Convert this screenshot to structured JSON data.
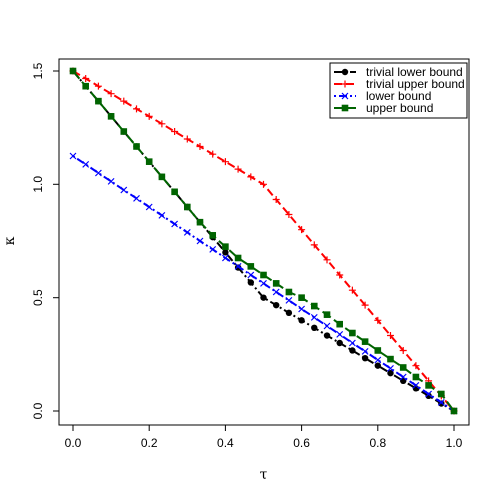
{
  "chart_data": {
    "type": "line",
    "xlabel": "τ",
    "ylabel": "κ",
    "xlim": [
      0,
      1
    ],
    "ylim": [
      0,
      1.5
    ],
    "x_ticks": [
      "0.0",
      "0.2",
      "0.4",
      "0.6",
      "0.8",
      "1.0"
    ],
    "y_ticks": [
      "0.0",
      "0.5",
      "1.0",
      "1.5"
    ],
    "grid": false,
    "legend_position": "top-right",
    "x": [
      0,
      0.0333,
      0.0667,
      0.1,
      0.1333,
      0.1667,
      0.2,
      0.2333,
      0.2667,
      0.3,
      0.3333,
      0.3667,
      0.4,
      0.4333,
      0.4667,
      0.5,
      0.5333,
      0.5667,
      0.6,
      0.6333,
      0.6667,
      0.7,
      0.7333,
      0.7667,
      0.8,
      0.8333,
      0.8667,
      0.9,
      0.9333,
      0.9667,
      1.0
    ],
    "series": [
      {
        "name": "trivial lower bound",
        "color": "#000000",
        "marker": "circle",
        "dash": "8 3 2 3",
        "values": [
          1.5,
          1.433,
          1.367,
          1.3,
          1.233,
          1.167,
          1.1,
          1.033,
          0.967,
          0.9,
          0.833,
          0.767,
          0.7,
          0.633,
          0.567,
          0.5,
          0.467,
          0.433,
          0.4,
          0.367,
          0.333,
          0.3,
          0.267,
          0.233,
          0.2,
          0.167,
          0.133,
          0.1,
          0.067,
          0.033,
          0.0
        ]
      },
      {
        "name": "trivial upper bound",
        "color": "#ff0000",
        "marker": "plus",
        "dash": "8 4",
        "values": [
          1.5,
          1.467,
          1.433,
          1.4,
          1.367,
          1.333,
          1.3,
          1.267,
          1.233,
          1.2,
          1.167,
          1.133,
          1.1,
          1.067,
          1.033,
          1.0,
          0.933,
          0.867,
          0.8,
          0.733,
          0.667,
          0.6,
          0.533,
          0.467,
          0.4,
          0.333,
          0.267,
          0.2,
          0.133,
          0.067,
          0.0
        ]
      },
      {
        "name": "lower bound",
        "color": "#0000ff",
        "marker": "x",
        "dash": "2 3 8 3",
        "values": [
          1.125,
          1.088,
          1.05,
          1.013,
          0.975,
          0.938,
          0.9,
          0.863,
          0.825,
          0.788,
          0.75,
          0.713,
          0.675,
          0.638,
          0.6,
          0.563,
          0.525,
          0.488,
          0.45,
          0.413,
          0.375,
          0.338,
          0.3,
          0.263,
          0.225,
          0.188,
          0.15,
          0.113,
          0.075,
          0.038,
          0.0
        ]
      },
      {
        "name": "upper bound",
        "color": "#006400",
        "marker": "square",
        "dash": "10 4",
        "values": [
          1.5,
          1.433,
          1.367,
          1.3,
          1.233,
          1.167,
          1.1,
          1.033,
          0.967,
          0.9,
          0.833,
          0.775,
          0.725,
          0.675,
          0.638,
          0.6,
          0.563,
          0.525,
          0.5,
          0.463,
          0.425,
          0.383,
          0.344,
          0.306,
          0.267,
          0.229,
          0.192,
          0.15,
          0.113,
          0.075,
          0.0
        ]
      }
    ]
  }
}
